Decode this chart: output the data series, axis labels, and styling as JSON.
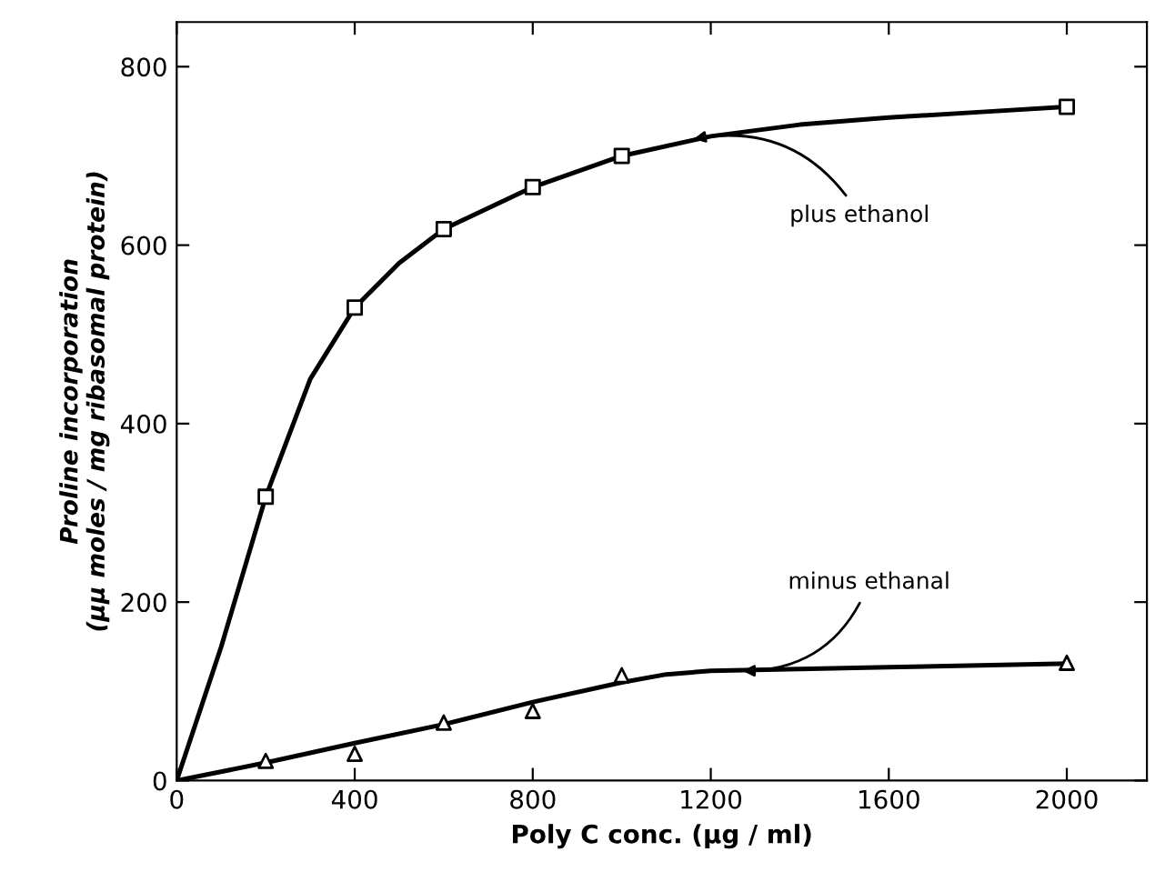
{
  "chart_data": {
    "type": "scatter",
    "xlabel": "Poly C conc. (μg / ml)",
    "ylabel": "Proline incorporation\n(μμ moles / mg ribasomal protein)",
    "xlim": [
      0,
      2180
    ],
    "ylim": [
      0,
      850
    ],
    "xticks": [
      0,
      400,
      800,
      1200,
      1600,
      2000
    ],
    "yticks": [
      0,
      200,
      400,
      600,
      800
    ],
    "grid": false,
    "legend": false,
    "series": [
      {
        "type": "line",
        "color": "#000000",
        "marker": "none",
        "line_style": "solid",
        "x": [
          0,
          100,
          200,
          300,
          400,
          500,
          600,
          800,
          1000,
          1200,
          1400,
          1600,
          1800,
          2000
        ],
        "values": [
          0,
          150,
          318,
          450,
          530,
          580,
          618,
          665,
          700,
          722,
          735,
          743,
          749,
          755
        ]
      },
      {
        "color": "#000000",
        "marker": "square",
        "x": [
          200,
          400,
          600,
          800,
          1000,
          2000
        ],
        "values": [
          318,
          530,
          618,
          665,
          700,
          755
        ]
      },
      {
        "type": "line",
        "color": "#000000",
        "marker": "none",
        "line_style": "solid",
        "x": [
          0,
          200,
          400,
          600,
          800,
          1000,
          1100,
          1200,
          1400,
          1600,
          2000
        ],
        "values": [
          0,
          20,
          42,
          63,
          88,
          110,
          119,
          123,
          125,
          127,
          131
        ]
      },
      {
        "color": "#000000",
        "marker": "triangle",
        "x": [
          200,
          400,
          600,
          800,
          1000,
          2000
        ],
        "values": [
          22,
          30,
          65,
          78,
          118,
          132
        ]
      }
    ],
    "annotations": [
      {
        "text": "plus ethanol",
        "x": 1150,
        "y": 718
      },
      {
        "text": "minus ethanal",
        "x": 1260,
        "y": 123
      }
    ]
  }
}
